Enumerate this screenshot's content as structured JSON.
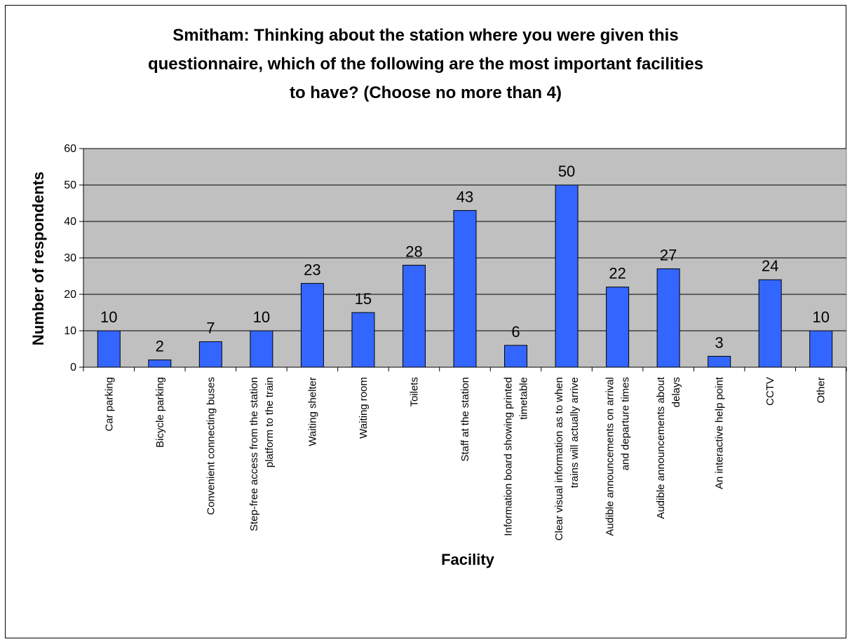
{
  "colors": {
    "plot_background": "#c0c0c0",
    "bar_fill": "#3366ff",
    "bar_stroke": "#000000",
    "grid": "#000000"
  },
  "chart_data": {
    "type": "bar",
    "title_lines": [
      "Smitham: Thinking about the station where you were given this",
      "questionnaire, which of the following are the most important facilities",
      "to have? (Choose no more than 4)"
    ],
    "xlabel": "Facility",
    "ylabel": "Number of respondents",
    "ylim": [
      0,
      60
    ],
    "yticks": [
      "0",
      "10",
      "20",
      "30",
      "40",
      "50",
      "60"
    ],
    "grid": true,
    "legend": "none",
    "categories": [
      [
        "Car parking"
      ],
      [
        "Bicycle parking"
      ],
      [
        "Convenient connecting buses"
      ],
      [
        "Step-free access from the station",
        "platform to the train"
      ],
      [
        "Waiting shelter"
      ],
      [
        "Waiting room"
      ],
      [
        "Toilets"
      ],
      [
        "Staff at the station"
      ],
      [
        "Information board showing printed",
        "timetable"
      ],
      [
        "Clear visual information as to when",
        "trains will actually arrive"
      ],
      [
        "Audible announcements on arrival",
        "and departure times"
      ],
      [
        "Audible announcements about",
        "delays"
      ],
      [
        "An interactive help point"
      ],
      [
        "CCTV"
      ],
      [
        "Other"
      ]
    ],
    "values": [
      10,
      2,
      7,
      10,
      23,
      15,
      28,
      43,
      6,
      50,
      22,
      27,
      3,
      24,
      10
    ]
  }
}
